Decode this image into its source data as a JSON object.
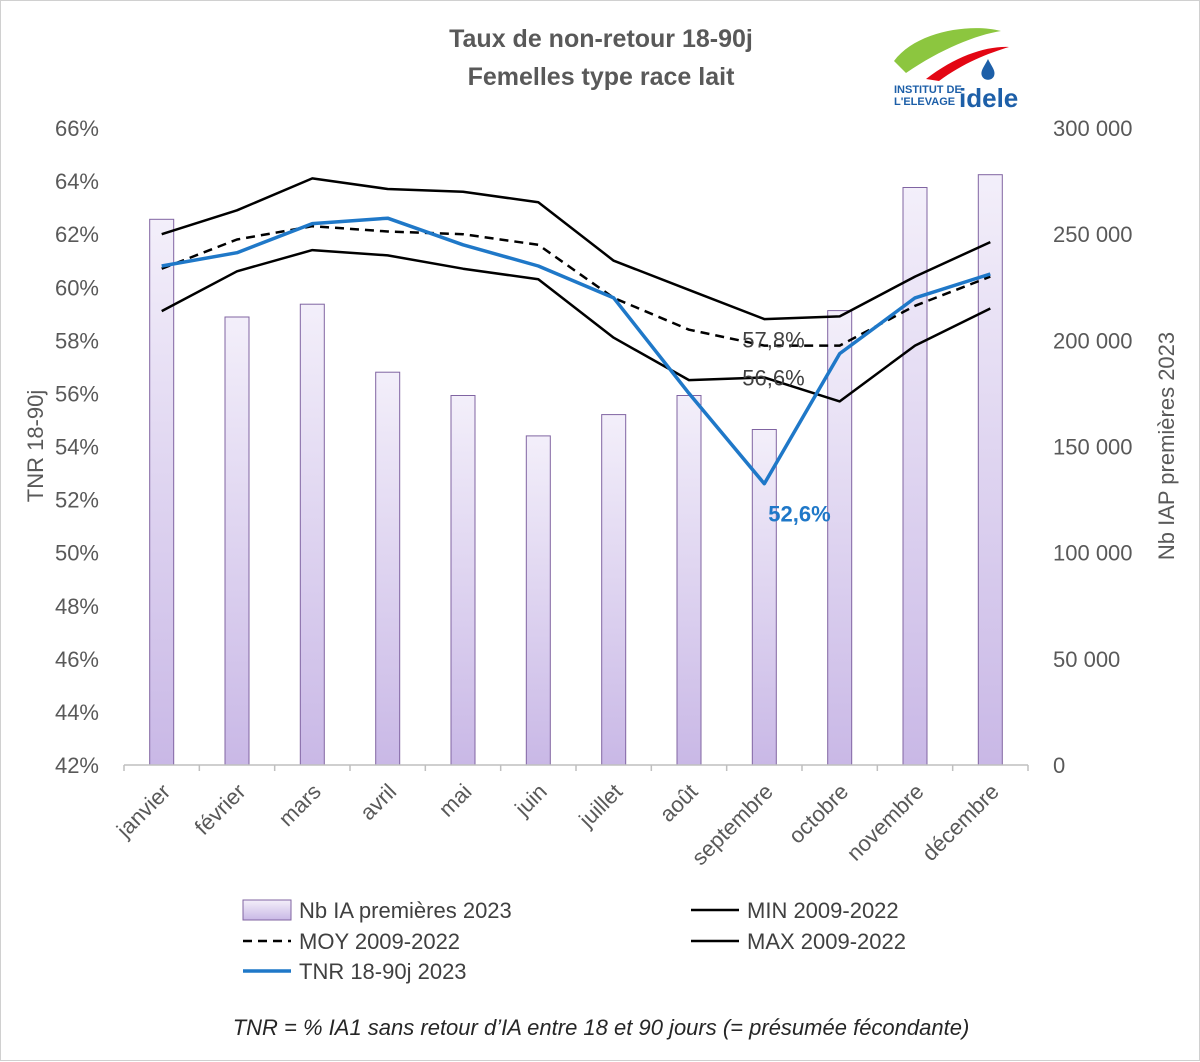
{
  "chart_data": {
    "type": "bar",
    "title": "Taux de non-retour 18-90j",
    "subtitle": "Femelles type race lait",
    "categories": [
      "janvier",
      "février",
      "mars",
      "avril",
      "mai",
      "juin",
      "juillet",
      "août",
      "septembre",
      "octobre",
      "novembre",
      "décembre"
    ],
    "ylabel": "TNR 18-90j",
    "ylabel_right": "Nb IAP premières 2023",
    "ylim": [
      42,
      66
    ],
    "ylim_right": [
      0,
      300000
    ],
    "y_ticks": [
      "42%",
      "44%",
      "46%",
      "48%",
      "50%",
      "52%",
      "54%",
      "56%",
      "58%",
      "60%",
      "62%",
      "64%",
      "66%"
    ],
    "y_ticks_right": [
      "0",
      "50 000",
      "100 000",
      "150 000",
      "200 000",
      "250 000",
      "300 000"
    ],
    "series": [
      {
        "name": "Nb IA premières 2023",
        "type": "bar",
        "axis": "right",
        "color": "#c9b8e6",
        "values": [
          257000,
          211000,
          217000,
          185000,
          174000,
          155000,
          165000,
          174000,
          158000,
          214000,
          272000,
          278000
        ]
      },
      {
        "name": "MIN 2009-2022",
        "type": "line",
        "axis": "left",
        "color": "#000000",
        "dash": "solid",
        "values": [
          59.1,
          60.6,
          61.4,
          61.2,
          60.7,
          60.3,
          58.1,
          56.5,
          56.6,
          55.7,
          57.8,
          59.2
        ]
      },
      {
        "name": "MOY 2009-2022",
        "type": "line",
        "axis": "left",
        "color": "#000000",
        "dash": "dashed",
        "values": [
          60.7,
          61.8,
          62.3,
          62.1,
          62.0,
          61.6,
          59.6,
          58.4,
          57.8,
          57.8,
          59.3,
          60.4
        ]
      },
      {
        "name": "MAX 2009-2022",
        "type": "line",
        "axis": "left",
        "color": "#000000",
        "dash": "solid",
        "values": [
          62.0,
          62.9,
          64.1,
          63.7,
          63.6,
          63.2,
          61.0,
          59.9,
          58.8,
          58.9,
          60.4,
          61.7
        ]
      },
      {
        "name": "TNR 18-90j 2023",
        "type": "line",
        "axis": "left",
        "color": "#1f78c8",
        "dash": "solid",
        "values": [
          60.8,
          61.3,
          62.4,
          62.6,
          61.6,
          60.8,
          59.6,
          56.0,
          52.6,
          57.5,
          59.6,
          60.5
        ]
      }
    ],
    "annotations": [
      {
        "text": "57,8%",
        "month": "septembre",
        "value": 57.8,
        "color": "#404040"
      },
      {
        "text": "56,6%",
        "month": "septembre",
        "value": 56.6,
        "color": "#404040"
      },
      {
        "text": "52,6%",
        "month": "septembre",
        "value": 52.6,
        "color": "#1f78c8"
      }
    ],
    "legend_position": "bottom",
    "grid": false
  },
  "footnote": "TNR = % IA1 sans retour d’IA entre 18 et 90 jours (= présumée fécondante)",
  "logo": {
    "line1": "INSTITUT DE",
    "line2": "L'ELEVAGE",
    "word": "idele",
    "colors": {
      "green": "#8cc63f",
      "blue": "#1d5fa8",
      "red": "#e30613"
    }
  }
}
